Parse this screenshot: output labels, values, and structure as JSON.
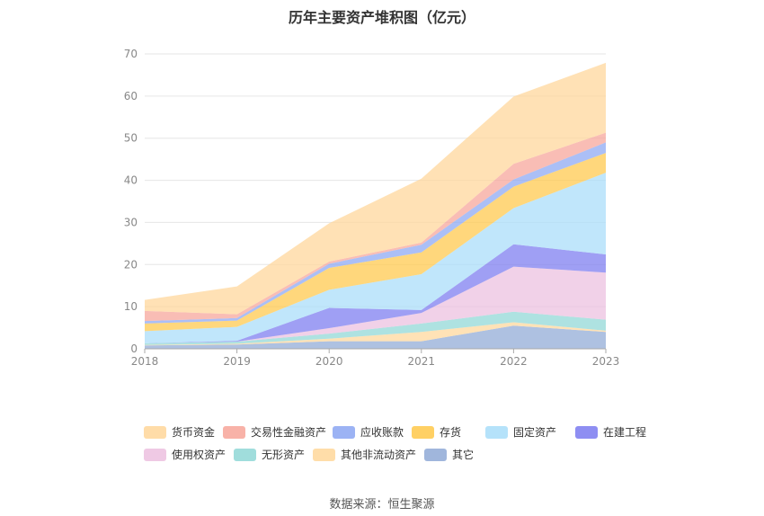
{
  "chart_data": {
    "type": "area",
    "stacked": true,
    "title": "历年主要资产堆积图（亿元）",
    "source": "数据来源：恒生聚源",
    "xlabel": "",
    "ylabel": "",
    "categories": [
      "2018",
      "2019",
      "2020",
      "2021",
      "2022",
      "2023"
    ],
    "ylim": [
      0,
      70
    ],
    "yticks": [
      "0",
      "10",
      "20",
      "30",
      "40",
      "50",
      "60",
      "70"
    ],
    "grid": true,
    "legend_position": "bottom",
    "series": [
      {
        "name": "其它",
        "color": "#8fa9d6",
        "values": [
          0.8,
          1.0,
          1.8,
          1.8,
          5.5,
          4.0
        ]
      },
      {
        "name": "其他非流动资产",
        "color": "#ffd79a",
        "values": [
          0.1,
          0.2,
          0.6,
          2.2,
          0.8,
          0.3
        ]
      },
      {
        "name": "无形资产",
        "color": "#8fd7d6",
        "values": [
          0.4,
          0.5,
          1.2,
          2.0,
          2.5,
          2.6
        ]
      },
      {
        "name": "使用权资产",
        "color": "#ecbfdf",
        "values": [
          0.0,
          0.0,
          1.3,
          2.5,
          10.7,
          11.2
        ]
      },
      {
        "name": "在建工程",
        "color": "#7a7af0",
        "values": [
          0.0,
          0.2,
          4.8,
          0.7,
          5.3,
          4.3
        ]
      },
      {
        "name": "固定资产",
        "color": "#a8ddf9",
        "values": [
          2.9,
          3.3,
          4.3,
          8.5,
          8.6,
          19.4
        ]
      },
      {
        "name": "存货",
        "color": "#ffc849",
        "values": [
          1.8,
          1.5,
          5.2,
          5.2,
          5.1,
          4.7
        ]
      },
      {
        "name": "应收账款",
        "color": "#8ba6f2",
        "values": [
          0.6,
          0.6,
          1.0,
          1.8,
          1.7,
          2.5
        ]
      },
      {
        "name": "交易性金融资产",
        "color": "#f7a499",
        "values": [
          2.4,
          0.9,
          0.5,
          0.5,
          3.7,
          2.3
        ]
      },
      {
        "name": "货币资金",
        "color": "#ffd699",
        "values": [
          2.6,
          6.6,
          9.1,
          15.2,
          16.0,
          16.6
        ]
      }
    ],
    "legend_order": [
      "货币资金",
      "交易性金融资产",
      "应收账款",
      "存货",
      "固定资产",
      "在建工程",
      "使用权资产",
      "无形资产",
      "其他非流动资产",
      "其它"
    ]
  }
}
